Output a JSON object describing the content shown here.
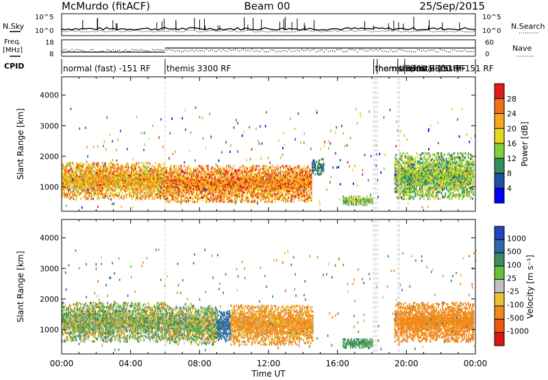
{
  "header": {
    "title": "McMurdo (fitACF)",
    "beam": "Beam 00",
    "date": "25/Sep/2015"
  },
  "strips": {
    "nsky_label": "N.Sky",
    "nsearch_label": "N.Search",
    "noise_ticks": [
      "10^5",
      "10^0"
    ],
    "freq_label": "Freq.",
    "freq_unit": "[MHz]",
    "freq_ticks": [
      "18",
      "8"
    ],
    "nave_label": "Nave",
    "nave_ticks": [
      "60",
      "0"
    ],
    "cpid_label": "CPID",
    "cpid_segments": [
      {
        "label": "normal (fast) -151 RF",
        "start": 0.0,
        "end": 6.0
      },
      {
        "label": "themis 3300 RF",
        "start": 6.0,
        "end": 18.1
      },
      {
        "label": "themis 3300 RF",
        "start": 18.1,
        "end": 18.3
      },
      {
        "label": "normal (fast) -151 RF",
        "start": 18.3,
        "end": 19.5
      },
      {
        "label": "themis 3300 RF",
        "start": 19.5,
        "end": 19.9
      },
      {
        "label": "normal (fast) -151 RF",
        "start": 19.9,
        "end": 24.0
      }
    ]
  },
  "colors": {
    "power_scale": [
      "#0000ff",
      "#1f4fa8",
      "#2f8f5f",
      "#7fcf3f",
      "#e6d81e",
      "#f5a623",
      "#f07018",
      "#e21b1b"
    ],
    "velocity_scale": [
      "#2244c0",
      "#2d6aa8",
      "#3d8b5e",
      "#67c23a",
      "#c0c0c0",
      "#e8c234",
      "#f08a1c",
      "#e85a14",
      "#e11414"
    ]
  },
  "chart_data": [
    {
      "type": "heatmap",
      "panel": "power",
      "xlabel": "",
      "ylabel": "Slant Range [km]",
      "xlim": [
        0,
        24
      ],
      "ylim": [
        200,
        4600
      ],
      "yticks": [
        1000,
        2000,
        3000,
        4000
      ],
      "colorbar": {
        "label": "Power [dB]",
        "ticks": [
          4,
          8,
          12,
          16,
          20,
          24,
          28
        ],
        "range": [
          0,
          32
        ]
      },
      "echo_regions": [
        {
          "x": [
            0.0,
            6.0
          ],
          "range_km": [
            600,
            1800
          ],
          "power_db": 22
        },
        {
          "x": [
            6.0,
            14.5
          ],
          "range_km": [
            500,
            1700
          ],
          "power_db": 24
        },
        {
          "x": [
            14.5,
            15.2
          ],
          "range_km": [
            1400,
            1900
          ],
          "power_db": 10
        },
        {
          "x": [
            16.3,
            18.0
          ],
          "range_km": [
            400,
            700
          ],
          "power_db": 14
        },
        {
          "x": [
            19.3,
            23.9
          ],
          "range_km": [
            600,
            2100
          ],
          "power_db": 14
        }
      ]
    },
    {
      "type": "heatmap",
      "panel": "velocity",
      "xlabel": "Time UT",
      "ylabel": "Slant Range [km]",
      "xlim": [
        0,
        24
      ],
      "ylim": [
        200,
        4600
      ],
      "xticks": [
        "00:00",
        "04:00",
        "08:00",
        "12:00",
        "16:00",
        "20:00",
        "00:00"
      ],
      "yticks": [
        1000,
        2000,
        3000,
        4000
      ],
      "colorbar": {
        "label": "Velocity [m s⁻¹]",
        "ticks": [
          "1000",
          "500",
          "100",
          "25",
          "-25",
          "-100",
          "-500",
          "-1000"
        ]
      },
      "echo_regions": [
        {
          "x": [
            0.0,
            6.0
          ],
          "range_km": [
            600,
            1900
          ],
          "velocity_ms": 50
        },
        {
          "x": [
            6.0,
            9.0
          ],
          "range_km": [
            500,
            1800
          ],
          "velocity_ms": 50
        },
        {
          "x": [
            9.0,
            9.8
          ],
          "range_km": [
            600,
            1600
          ],
          "velocity_ms": 600
        },
        {
          "x": [
            9.8,
            14.6
          ],
          "range_km": [
            500,
            1800
          ],
          "velocity_ms": -200
        },
        {
          "x": [
            16.3,
            18.0
          ],
          "range_km": [
            400,
            700
          ],
          "velocity_ms": 200
        },
        {
          "x": [
            19.3,
            23.9
          ],
          "range_km": [
            600,
            1900
          ],
          "velocity_ms": -300
        }
      ]
    }
  ]
}
